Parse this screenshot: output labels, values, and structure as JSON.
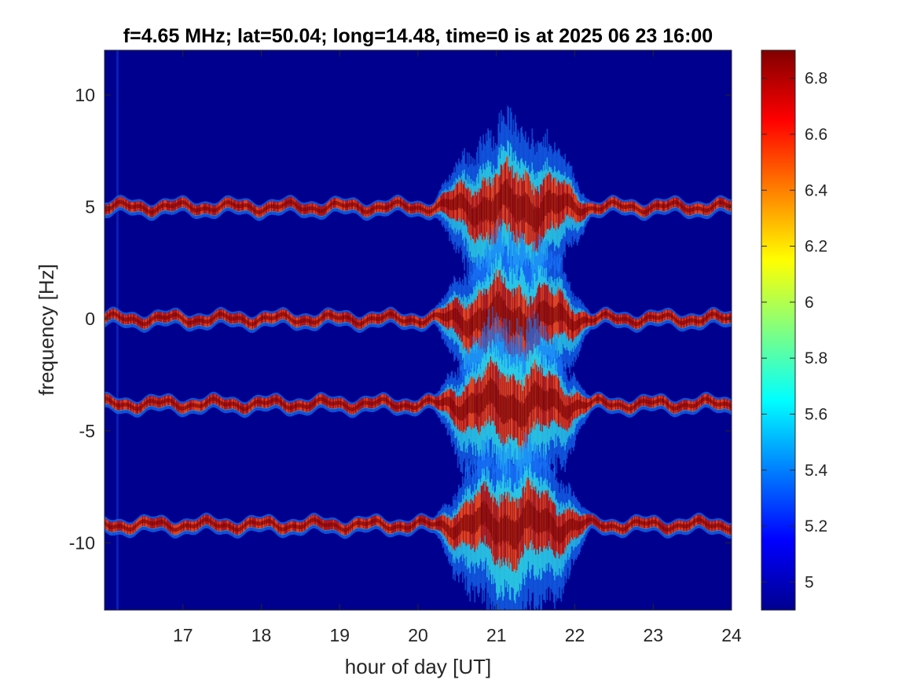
{
  "chart_data": {
    "type": "heatmap",
    "title": "f=4.65 MHz;  lat=50.04; long=14.48, time=0 is at 2025 06 23 16:00",
    "xlabel": "hour of day [UT]",
    "ylabel": "frequency [Hz]",
    "xlim": [
      16,
      24
    ],
    "ylim": [
      -13,
      12
    ],
    "x_ticks": [
      17,
      18,
      19,
      20,
      21,
      22,
      23,
      24
    ],
    "y_ticks": [
      10,
      5,
      0,
      -5,
      -10
    ],
    "colormap": "jet",
    "clim": [
      4.9,
      6.9
    ],
    "colorbar_ticks": [
      6.8,
      6.6,
      6.4,
      6.2,
      6,
      5.8,
      5.6,
      5.4,
      5.2,
      5
    ],
    "background_color": "#00008f",
    "grid": false,
    "series": [
      {
        "center_freq_hz": 5
      },
      {
        "center_freq_hz": 0
      },
      {
        "center_freq_hz": -3.8
      },
      {
        "center_freq_hz": -9.2
      }
    ],
    "disturbance_window_ut": [
      20,
      22
    ]
  }
}
